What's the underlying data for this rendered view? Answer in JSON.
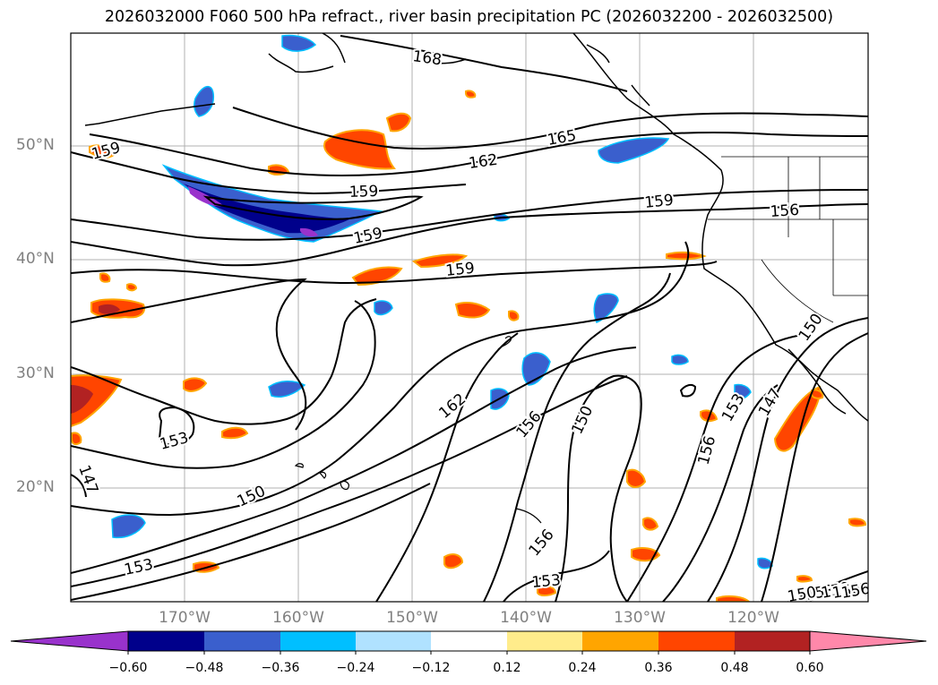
{
  "title": "2026032000 F060 500 hPa refract., river basin precipitation PC (2026032200 - 2026032500)",
  "map": {
    "lat_labels": [
      "50°N",
      "40°N",
      "30°N",
      "20°N"
    ],
    "lon_labels": [
      "170°W",
      "160°W",
      "150°W",
      "140°W",
      "130°W",
      "120°W"
    ],
    "contour_labels": [
      "168",
      "165",
      "162",
      "159",
      "159",
      "159",
      "159",
      "159",
      "156",
      "153",
      "153",
      "153",
      "153",
      "150",
      "150",
      "150",
      "150",
      "147",
      "147",
      "162",
      "156",
      "156",
      "156",
      "153",
      "156",
      "150",
      "156"
    ],
    "contour_color": "#000000",
    "land_outline_color": "#000000",
    "grid_color": "#b0b0b0"
  },
  "colorbar": {
    "ticks": [
      "−0.60",
      "−0.48",
      "−0.36",
      "−0.24",
      "−0.12",
      "0.12",
      "0.24",
      "0.36",
      "0.48",
      "0.60"
    ],
    "colors": [
      "#9932cc",
      "#00008b",
      "#3a5fcd",
      "#00bfff",
      "#b0e2ff",
      "#ffffff",
      "#ffec8b",
      "#ffa500",
      "#ff4500",
      "#b22222",
      "#ff88aa"
    ]
  }
}
